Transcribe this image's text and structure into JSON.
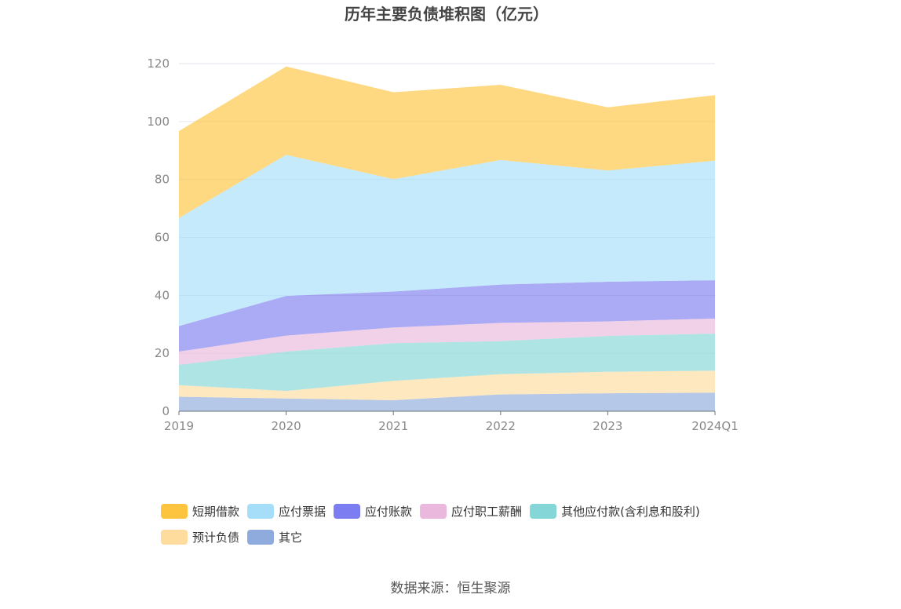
{
  "chart_data": {
    "type": "area",
    "stacked": true,
    "title": "历年主要负债堆积图（亿元）",
    "categories": [
      "2019",
      "2020",
      "2021",
      "2022",
      "2023",
      "2024Q1"
    ],
    "ylim": [
      0,
      120
    ],
    "yticks": [
      0,
      20,
      40,
      60,
      80,
      100,
      120
    ],
    "grid": true,
    "legend_position": "bottom",
    "series": [
      {
        "name": "其它",
        "color": "#8faadc",
        "values": [
          5.0,
          4.4,
          3.8,
          5.8,
          6.2,
          6.4
        ]
      },
      {
        "name": "预计负债",
        "color": "#fddc9e",
        "values": [
          4.0,
          2.6,
          6.7,
          7.0,
          7.4,
          7.6
        ]
      },
      {
        "name": "其他应付款(含利息和股利)",
        "color": "#84d6d7",
        "values": [
          7.0,
          13.6,
          13.0,
          11.4,
          12.4,
          12.8
        ]
      },
      {
        "name": "应付职工薪酬",
        "color": "#e9b8dc",
        "values": [
          4.6,
          5.5,
          5.4,
          6.3,
          5.0,
          5.2
        ]
      },
      {
        "name": "应付账款",
        "color": "#7c7df0",
        "values": [
          8.8,
          13.7,
          12.4,
          13.2,
          13.7,
          13.2
        ]
      },
      {
        "name": "应付票据",
        "color": "#a6defa",
        "values": [
          37.3,
          48.7,
          38.8,
          43.0,
          38.4,
          41.3
        ]
      },
      {
        "name": "短期借款",
        "color": "#fdc43f",
        "values": [
          30.0,
          30.5,
          30.0,
          26.0,
          21.8,
          22.6
        ]
      }
    ],
    "legend_order": [
      "短期借款",
      "应付票据",
      "应付账款",
      "应付职工薪酬",
      "其他应付款(含利息和股利)",
      "预计负债",
      "其它"
    ]
  },
  "source_label": "数据来源：恒生聚源"
}
